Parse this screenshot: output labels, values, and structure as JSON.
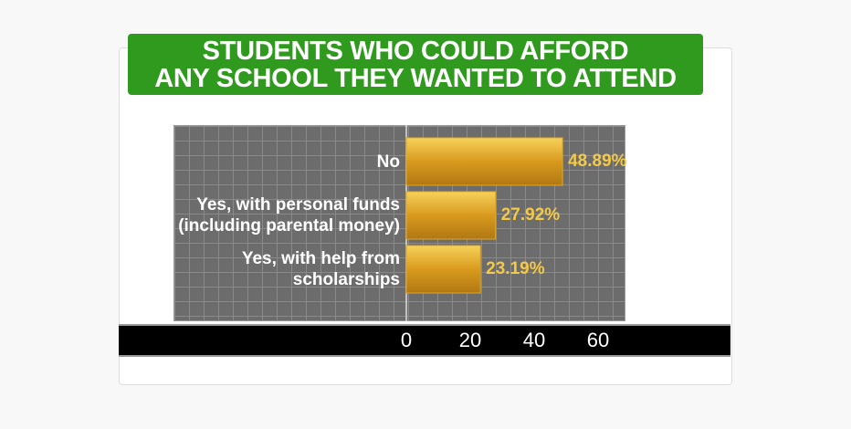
{
  "chart_data": {
    "type": "bar",
    "orientation": "horizontal",
    "title": "STUDENTS WHO COULD AFFORD\nANY SCHOOL THEY WANTED TO ATTEND",
    "categories": [
      "No",
      "Yes, with personal funds\n(including parental money)",
      "Yes, with help from\nscholarships"
    ],
    "values": [
      48.89,
      27.92,
      23.19
    ],
    "value_labels": [
      "48.89%",
      "27.92%",
      "23.19%"
    ],
    "color": "#e0a826",
    "xlim": [
      0,
      68
    ],
    "xticks": [
      0,
      20,
      40,
      60
    ],
    "grid": true
  }
}
